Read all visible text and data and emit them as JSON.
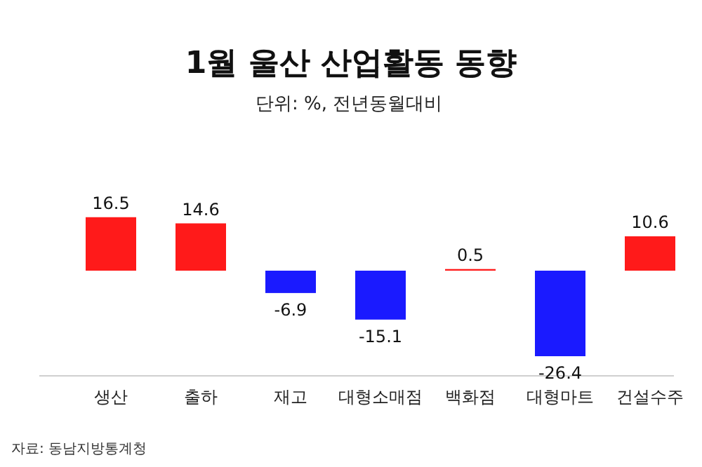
{
  "chart_data": {
    "type": "bar",
    "title": "1월 울산 산업활동 동향",
    "subtitle": "단위: %, 전년동월대비",
    "categories": [
      "생산",
      "출하",
      "재고",
      "대형소매점",
      "백화점",
      "대형마트",
      "건설수주"
    ],
    "values": [
      16.5,
      14.6,
      -6.9,
      -15.1,
      0.5,
      -26.4,
      10.6
    ],
    "colors": [
      "#ff1a1a",
      "#ff1a1a",
      "#1a1aff",
      "#1a1aff",
      "#ff1a1a",
      "#1a1aff",
      "#ff1a1a"
    ],
    "data_labels": true,
    "annotations": [
      "자료: 동남지방통계청"
    ]
  }
}
